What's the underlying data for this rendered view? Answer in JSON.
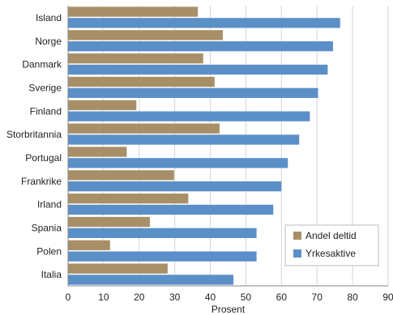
{
  "chart_data": {
    "type": "bar",
    "orientation": "horizontal",
    "categories": [
      "Island",
      "Norge",
      "Danmark",
      "Sverige",
      "Finland",
      "Storbritannia",
      "Portugal",
      "Frankrike",
      "Irland",
      "Spania",
      "Polen",
      "Italia"
    ],
    "series": [
      {
        "name": "Andel deltid",
        "color": "#a88f67",
        "values": [
          36.5,
          43.5,
          38,
          41.2,
          19.2,
          42.6,
          16.5,
          29.8,
          33.8,
          23,
          11.8,
          28
        ]
      },
      {
        "name": "Yrkesaktive",
        "color": "#5b8fc8",
        "values": [
          76.5,
          74.5,
          73,
          70.3,
          68,
          65,
          61.8,
          60,
          57.7,
          53,
          53,
          46.5
        ]
      }
    ],
    "xlabel": "Prosent",
    "ylabel": "",
    "xlim": [
      0,
      90
    ],
    "xticks": [
      "0",
      "10",
      "20",
      "30",
      "40",
      "50",
      "60",
      "70",
      "80",
      "90"
    ],
    "grid": "vertical",
    "legend_position": "bottom-right"
  }
}
